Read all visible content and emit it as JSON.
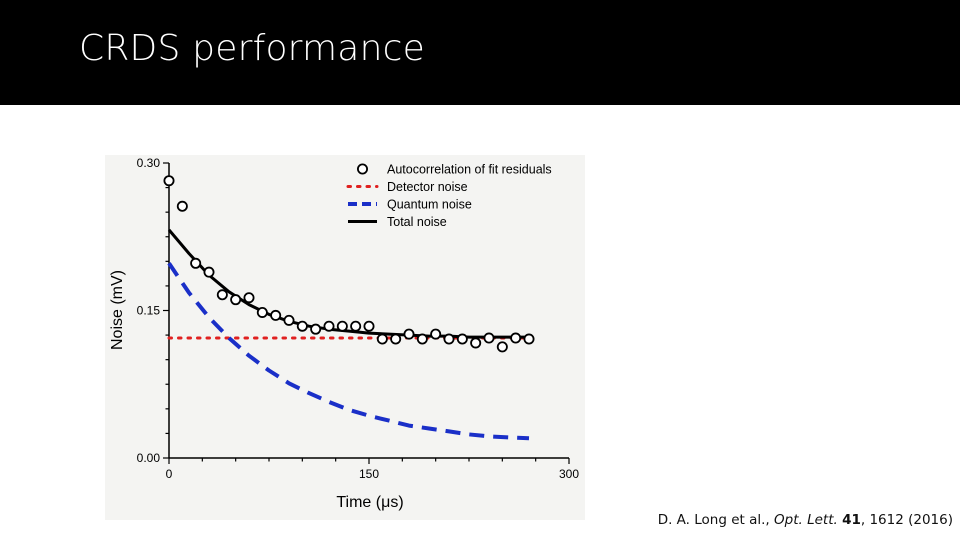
{
  "slide": {
    "title": "CRDS performance",
    "citation": {
      "authors": "D. A. Long et al., ",
      "journal": "Opt. Lett.",
      "volume": "41",
      "pages_year": ", 1612 (2016)"
    }
  },
  "chart_data": {
    "type": "scatter",
    "xlabel": "Time (μs)",
    "ylabel": "Noise (mV)",
    "xlim": [
      0,
      300
    ],
    "ylim": [
      0,
      0.3
    ],
    "x_ticks": [
      "0",
      "150",
      "300"
    ],
    "y_ticks": [
      "0.00",
      "0.15",
      "0.30"
    ],
    "legend_position": "top-right",
    "grid": false,
    "series": [
      {
        "name": "Autocorrelation of fit residuals",
        "kind": "points",
        "color": "#000000",
        "x": [
          0,
          10,
          20,
          30,
          40,
          50,
          60,
          70,
          80,
          90,
          100,
          110,
          120,
          130,
          140,
          150,
          160,
          170,
          180,
          190,
          200,
          210,
          220,
          230,
          240,
          250,
          260,
          270
        ],
        "y": [
          0.282,
          0.256,
          0.198,
          0.189,
          0.166,
          0.161,
          0.163,
          0.148,
          0.145,
          0.14,
          0.134,
          0.131,
          0.134,
          0.134,
          0.134,
          0.134,
          0.121,
          0.121,
          0.126,
          0.121,
          0.126,
          0.121,
          0.121,
          0.117,
          0.122,
          0.113,
          0.122,
          0.121
        ]
      },
      {
        "name": "Detector noise",
        "kind": "dotted",
        "color": "#e02020",
        "x": [
          0,
          270
        ],
        "y": [
          0.122,
          0.122
        ]
      },
      {
        "name": "Quantum noise",
        "kind": "dashed",
        "color": "#1a2fc8",
        "x": [
          0,
          15,
          30,
          45,
          60,
          75,
          90,
          105,
          120,
          135,
          150,
          165,
          180,
          195,
          210,
          225,
          240,
          255,
          270
        ],
        "y": [
          0.198,
          0.168,
          0.143,
          0.122,
          0.104,
          0.089,
          0.076,
          0.066,
          0.057,
          0.049,
          0.043,
          0.038,
          0.033,
          0.03,
          0.027,
          0.024,
          0.022,
          0.021,
          0.02
        ]
      },
      {
        "name": "Total noise",
        "kind": "solid",
        "color": "#000000",
        "x": [
          0,
          15,
          30,
          45,
          60,
          75,
          90,
          105,
          120,
          135,
          150,
          165,
          180,
          195,
          210,
          225,
          240,
          255,
          270
        ],
        "y": [
          0.232,
          0.208,
          0.186,
          0.169,
          0.156,
          0.146,
          0.139,
          0.134,
          0.131,
          0.129,
          0.127,
          0.126,
          0.125,
          0.124,
          0.124,
          0.123,
          0.123,
          0.123,
          0.123
        ]
      }
    ]
  }
}
